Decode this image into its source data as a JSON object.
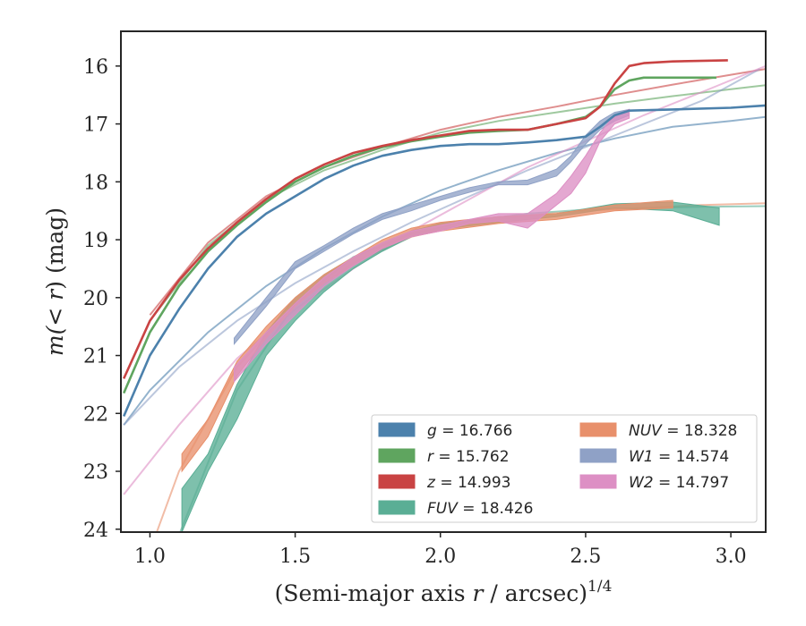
{
  "chart_data": {
    "type": "line",
    "xlabel_main": "(Semi-major axis ",
    "xlabel_var": "r",
    "xlabel_tail": " / arcsec)",
    "xlabel_sup": "1/4",
    "ylabel_main": "m(",
    "ylabel_var": "< r",
    "ylabel_tail": ") (mag)",
    "xlim": [
      0.9,
      3.12
    ],
    "ylim": [
      24.05,
      15.4
    ],
    "x_ticks": [
      1.0,
      1.5,
      2.0,
      2.5,
      3.0
    ],
    "x_tick_labels": [
      "1.0",
      "1.5",
      "2.0",
      "2.5",
      "3.0"
    ],
    "y_ticks": [
      16,
      17,
      18,
      19,
      20,
      21,
      22,
      23,
      24
    ],
    "y_tick_labels": [
      "16",
      "17",
      "18",
      "19",
      "20",
      "21",
      "22",
      "23",
      "24"
    ],
    "grid": false,
    "legend_placement": "lower-right",
    "series": [
      {
        "name": "g",
        "legend": "g = 16.766",
        "color": "#4c81ac",
        "kind": "line",
        "points": [
          [
            0.91,
            22.05
          ],
          [
            1.0,
            21.0
          ],
          [
            1.1,
            20.2
          ],
          [
            1.2,
            19.5
          ],
          [
            1.3,
            18.95
          ],
          [
            1.4,
            18.55
          ],
          [
            1.5,
            18.25
          ],
          [
            1.6,
            17.95
          ],
          [
            1.7,
            17.72
          ],
          [
            1.8,
            17.55
          ],
          [
            1.9,
            17.45
          ],
          [
            2.0,
            17.38
          ],
          [
            2.1,
            17.35
          ],
          [
            2.2,
            17.35
          ],
          [
            2.3,
            17.32
          ],
          [
            2.4,
            17.28
          ],
          [
            2.5,
            17.22
          ],
          [
            2.55,
            17.05
          ],
          [
            2.6,
            16.85
          ],
          [
            2.65,
            16.77
          ],
          [
            2.8,
            16.75
          ],
          [
            3.0,
            16.72
          ],
          [
            3.12,
            16.68
          ]
        ],
        "fit": [
          [
            0.91,
            22.2
          ],
          [
            1.0,
            21.6
          ],
          [
            1.2,
            20.6
          ],
          [
            1.4,
            19.8
          ],
          [
            1.6,
            19.15
          ],
          [
            1.8,
            18.6
          ],
          [
            2.0,
            18.15
          ],
          [
            2.2,
            17.8
          ],
          [
            2.4,
            17.5
          ],
          [
            2.6,
            17.25
          ],
          [
            2.8,
            17.05
          ],
          [
            3.0,
            16.95
          ],
          [
            3.12,
            16.88
          ]
        ]
      },
      {
        "name": "r",
        "legend": "r = 15.762",
        "color": "#5fa55f",
        "kind": "line",
        "points": [
          [
            0.91,
            21.65
          ],
          [
            1.0,
            20.6
          ],
          [
            1.1,
            19.8
          ],
          [
            1.2,
            19.2
          ],
          [
            1.3,
            18.75
          ],
          [
            1.4,
            18.35
          ],
          [
            1.5,
            18.0
          ],
          [
            1.6,
            17.75
          ],
          [
            1.7,
            17.55
          ],
          [
            1.8,
            17.4
          ],
          [
            1.9,
            17.3
          ],
          [
            2.0,
            17.22
          ],
          [
            2.1,
            17.15
          ],
          [
            2.2,
            17.12
          ],
          [
            2.3,
            17.1
          ],
          [
            2.4,
            17.0
          ],
          [
            2.5,
            16.88
          ],
          [
            2.55,
            16.7
          ],
          [
            2.6,
            16.4
          ],
          [
            2.65,
            16.25
          ],
          [
            2.7,
            16.2
          ],
          [
            2.8,
            16.2
          ],
          [
            2.95,
            16.2
          ]
        ],
        "fit": [
          [
            1.0,
            20.4
          ],
          [
            1.2,
            19.1
          ],
          [
            1.4,
            18.3
          ],
          [
            1.6,
            17.8
          ],
          [
            1.8,
            17.45
          ],
          [
            2.0,
            17.15
          ],
          [
            2.2,
            16.95
          ],
          [
            2.4,
            16.8
          ],
          [
            2.6,
            16.65
          ],
          [
            2.8,
            16.52
          ],
          [
            3.0,
            16.4
          ],
          [
            3.12,
            16.33
          ]
        ]
      },
      {
        "name": "z",
        "legend": "z = 14.993",
        "color": "#c94343",
        "kind": "line",
        "points": [
          [
            0.91,
            21.4
          ],
          [
            1.0,
            20.4
          ],
          [
            1.1,
            19.7
          ],
          [
            1.2,
            19.15
          ],
          [
            1.3,
            18.7
          ],
          [
            1.4,
            18.3
          ],
          [
            1.5,
            17.95
          ],
          [
            1.6,
            17.7
          ],
          [
            1.7,
            17.5
          ],
          [
            1.8,
            17.38
          ],
          [
            1.9,
            17.28
          ],
          [
            2.0,
            17.2
          ],
          [
            2.1,
            17.12
          ],
          [
            2.2,
            17.1
          ],
          [
            2.3,
            17.1
          ],
          [
            2.4,
            17.0
          ],
          [
            2.5,
            16.9
          ],
          [
            2.55,
            16.7
          ],
          [
            2.6,
            16.3
          ],
          [
            2.65,
            16.0
          ],
          [
            2.7,
            15.95
          ],
          [
            2.8,
            15.92
          ],
          [
            2.99,
            15.9
          ]
        ],
        "fit": [
          [
            1.0,
            20.3
          ],
          [
            1.2,
            19.05
          ],
          [
            1.4,
            18.25
          ],
          [
            1.6,
            17.75
          ],
          [
            1.8,
            17.4
          ],
          [
            2.0,
            17.1
          ],
          [
            2.2,
            16.88
          ],
          [
            2.4,
            16.7
          ],
          [
            2.6,
            16.5
          ],
          [
            2.8,
            16.32
          ],
          [
            3.0,
            16.15
          ],
          [
            3.12,
            16.05
          ]
        ]
      },
      {
        "name": "FUV",
        "legend": "FUV = 18.426",
        "color": "#5aae95",
        "kind": "band",
        "upper": [
          [
            1.11,
            23.3
          ],
          [
            1.2,
            22.7
          ],
          [
            1.3,
            21.5
          ],
          [
            1.4,
            20.6
          ],
          [
            1.5,
            20.0
          ],
          [
            1.6,
            19.6
          ],
          [
            1.7,
            19.3
          ],
          [
            1.8,
            19.05
          ],
          [
            1.9,
            18.85
          ],
          [
            2.0,
            18.72
          ],
          [
            2.2,
            18.6
          ],
          [
            2.4,
            18.55
          ],
          [
            2.6,
            18.38
          ],
          [
            2.8,
            18.35
          ],
          [
            2.96,
            18.45
          ]
        ],
        "lower": [
          [
            2.96,
            18.75
          ],
          [
            2.8,
            18.5
          ],
          [
            2.6,
            18.45
          ],
          [
            2.4,
            18.6
          ],
          [
            2.2,
            18.7
          ],
          [
            2.0,
            18.82
          ],
          [
            1.9,
            18.95
          ],
          [
            1.8,
            19.2
          ],
          [
            1.7,
            19.5
          ],
          [
            1.6,
            19.9
          ],
          [
            1.5,
            20.4
          ],
          [
            1.4,
            21.0
          ],
          [
            1.3,
            22.1
          ],
          [
            1.2,
            23.0
          ],
          [
            1.11,
            24.05
          ]
        ],
        "fit": [
          [
            1.1,
            24.1
          ],
          [
            1.3,
            21.6
          ],
          [
            1.5,
            20.1
          ],
          [
            1.7,
            19.3
          ],
          [
            1.9,
            18.9
          ],
          [
            2.1,
            18.68
          ],
          [
            2.3,
            18.55
          ],
          [
            2.5,
            18.48
          ],
          [
            2.7,
            18.45
          ],
          [
            2.9,
            18.43
          ],
          [
            3.12,
            18.42
          ]
        ]
      },
      {
        "name": "NUV",
        "legend": "NUV = 18.328",
        "color": "#e8906b",
        "kind": "band",
        "upper": [
          [
            1.11,
            22.7
          ],
          [
            1.2,
            22.1
          ],
          [
            1.3,
            21.1
          ],
          [
            1.4,
            20.5
          ],
          [
            1.5,
            20.0
          ],
          [
            1.6,
            19.6
          ],
          [
            1.7,
            19.3
          ],
          [
            1.8,
            19.0
          ],
          [
            1.9,
            18.8
          ],
          [
            2.0,
            18.7
          ],
          [
            2.2,
            18.6
          ],
          [
            2.4,
            18.55
          ],
          [
            2.6,
            18.4
          ],
          [
            2.8,
            18.32
          ]
        ],
        "lower": [
          [
            2.8,
            18.45
          ],
          [
            2.6,
            18.5
          ],
          [
            2.4,
            18.65
          ],
          [
            2.2,
            18.72
          ],
          [
            2.0,
            18.85
          ],
          [
            1.9,
            18.95
          ],
          [
            1.8,
            19.15
          ],
          [
            1.7,
            19.45
          ],
          [
            1.6,
            19.75
          ],
          [
            1.5,
            20.15
          ],
          [
            1.4,
            20.7
          ],
          [
            1.3,
            21.35
          ],
          [
            1.2,
            22.4
          ],
          [
            1.11,
            23.0
          ]
        ],
        "fit": [
          [
            1.02,
            24.1
          ],
          [
            1.1,
            23.0
          ],
          [
            1.3,
            21.2
          ],
          [
            1.5,
            20.1
          ],
          [
            1.7,
            19.4
          ],
          [
            1.9,
            18.95
          ],
          [
            2.1,
            18.72
          ],
          [
            2.3,
            18.58
          ],
          [
            2.5,
            18.5
          ],
          [
            2.7,
            18.45
          ],
          [
            2.9,
            18.4
          ],
          [
            3.12,
            18.37
          ]
        ]
      },
      {
        "name": "W1",
        "legend": "W1 = 14.574",
        "color": "#8fa1c6",
        "kind": "band",
        "upper": [
          [
            1.29,
            20.7
          ],
          [
            1.4,
            20.0
          ],
          [
            1.5,
            19.38
          ],
          [
            1.6,
            19.1
          ],
          [
            1.7,
            18.8
          ],
          [
            1.8,
            18.55
          ],
          [
            1.9,
            18.4
          ],
          [
            2.0,
            18.25
          ],
          [
            2.1,
            18.1
          ],
          [
            2.2,
            18.0
          ],
          [
            2.3,
            17.97
          ],
          [
            2.4,
            17.78
          ],
          [
            2.45,
            17.55
          ],
          [
            2.5,
            17.2
          ],
          [
            2.55,
            16.95
          ],
          [
            2.6,
            16.8
          ],
          [
            2.65,
            16.75
          ]
        ],
        "lower": [
          [
            2.65,
            16.85
          ],
          [
            2.6,
            16.95
          ],
          [
            2.55,
            17.1
          ],
          [
            2.5,
            17.35
          ],
          [
            2.45,
            17.65
          ],
          [
            2.4,
            17.9
          ],
          [
            2.3,
            18.05
          ],
          [
            2.2,
            18.05
          ],
          [
            2.1,
            18.18
          ],
          [
            2.0,
            18.32
          ],
          [
            1.9,
            18.5
          ],
          [
            1.8,
            18.65
          ],
          [
            1.7,
            18.9
          ],
          [
            1.6,
            19.2
          ],
          [
            1.5,
            19.5
          ],
          [
            1.4,
            20.15
          ],
          [
            1.29,
            20.8
          ]
        ],
        "fit": [
          [
            0.91,
            22.2
          ],
          [
            1.1,
            21.2
          ],
          [
            1.3,
            20.4
          ],
          [
            1.5,
            19.75
          ],
          [
            1.7,
            19.2
          ],
          [
            1.9,
            18.7
          ],
          [
            2.1,
            18.25
          ],
          [
            2.3,
            17.8
          ],
          [
            2.5,
            17.4
          ],
          [
            2.7,
            17.0
          ],
          [
            2.9,
            16.6
          ],
          [
            3.1,
            16.05
          ]
        ]
      },
      {
        "name": "W2",
        "legend": "W2 = 14.797",
        "color": "#dd8fc4",
        "kind": "band",
        "upper": [
          [
            1.29,
            21.2
          ],
          [
            1.4,
            20.6
          ],
          [
            1.5,
            20.1
          ],
          [
            1.6,
            19.65
          ],
          [
            1.7,
            19.3
          ],
          [
            1.8,
            19.05
          ],
          [
            1.9,
            18.85
          ],
          [
            2.0,
            18.75
          ],
          [
            2.1,
            18.65
          ],
          [
            2.2,
            18.55
          ],
          [
            2.3,
            18.55
          ],
          [
            2.4,
            18.2
          ],
          [
            2.45,
            17.9
          ],
          [
            2.5,
            17.55
          ],
          [
            2.55,
            17.15
          ],
          [
            2.6,
            16.85
          ],
          [
            2.65,
            16.75
          ]
        ],
        "lower": [
          [
            2.65,
            16.9
          ],
          [
            2.6,
            17.0
          ],
          [
            2.55,
            17.3
          ],
          [
            2.5,
            17.85
          ],
          [
            2.45,
            18.2
          ],
          [
            2.4,
            18.4
          ],
          [
            2.3,
            18.8
          ],
          [
            2.2,
            18.68
          ],
          [
            2.1,
            18.72
          ],
          [
            2.0,
            18.85
          ],
          [
            1.9,
            18.95
          ],
          [
            1.8,
            19.15
          ],
          [
            1.7,
            19.45
          ],
          [
            1.6,
            19.8
          ],
          [
            1.5,
            20.3
          ],
          [
            1.4,
            20.8
          ],
          [
            1.29,
            21.45
          ]
        ],
        "fit": [
          [
            0.91,
            23.4
          ],
          [
            1.1,
            22.2
          ],
          [
            1.3,
            21.05
          ],
          [
            1.5,
            20.2
          ],
          [
            1.7,
            19.5
          ],
          [
            1.9,
            18.85
          ],
          [
            2.1,
            18.3
          ],
          [
            2.3,
            17.75
          ],
          [
            2.5,
            17.3
          ],
          [
            2.7,
            16.85
          ],
          [
            2.9,
            16.45
          ],
          [
            3.12,
            16.0
          ]
        ]
      }
    ]
  }
}
